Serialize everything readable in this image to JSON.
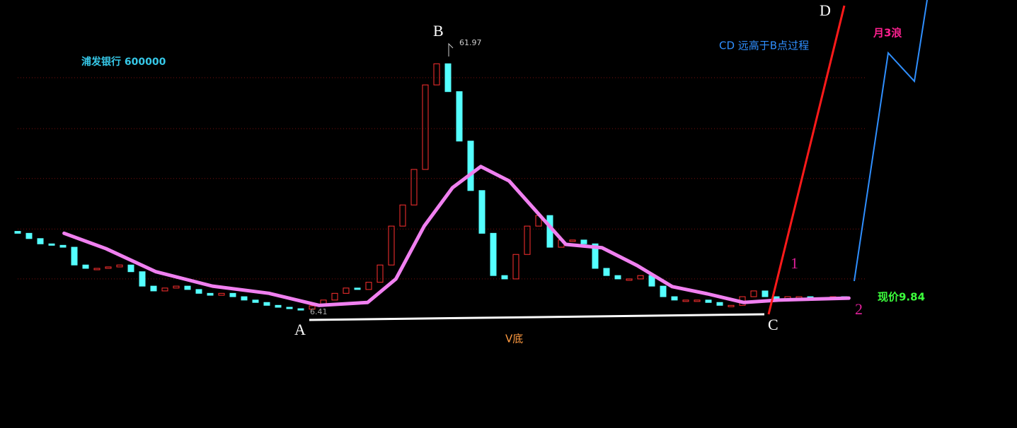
{
  "chart_data": {
    "type": "candlestick",
    "title": "浦发银行 600000",
    "open": [
      23.0,
      22.6,
      21.5,
      20.4,
      20.1,
      19.7,
      16.0,
      15.3,
      15.3,
      15.6,
      16.0,
      14.6,
      11.6,
      10.6,
      11.2,
      11.6,
      10.9,
      10.1,
      9.7,
      10.1,
      9.4,
      8.7,
      8.2,
      7.6,
      7.2,
      6.9,
      6.8,
      7.5,
      8.7,
      10.1,
      11.2,
      10.9,
      12.4,
      16.0,
      24.1,
      28.5,
      35.9,
      53.5,
      57.9,
      52.1,
      41.8,
      31.5,
      22.6,
      13.8,
      13.1,
      18.2,
      24.1,
      26.3,
      19.7,
      21.2,
      21.2,
      20.4,
      15.3,
      13.8,
      13.1,
      13.1,
      13.8,
      11.6,
      9.4,
      8.7,
      8.7,
      8.7,
      8.2,
      7.6,
      7.6,
      9.4,
      10.6,
      9.4,
      8.7,
      9.4,
      9.4,
      9.1,
      9.1,
      9.4
    ],
    "close": [
      22.6,
      21.5,
      20.4,
      20.1,
      19.7,
      16.0,
      15.3,
      15.3,
      15.6,
      16.0,
      14.6,
      11.6,
      10.6,
      11.2,
      11.6,
      10.9,
      10.1,
      9.7,
      10.1,
      9.4,
      8.7,
      8.2,
      7.6,
      7.2,
      6.9,
      6.8,
      7.5,
      8.7,
      10.1,
      11.2,
      10.9,
      12.4,
      16.0,
      24.1,
      28.5,
      35.9,
      53.5,
      57.9,
      52.1,
      41.8,
      31.5,
      22.6,
      13.8,
      13.1,
      18.2,
      24.1,
      26.3,
      19.7,
      21.2,
      21.2,
      20.4,
      15.3,
      13.8,
      13.1,
      13.1,
      13.8,
      11.6,
      9.4,
      8.7,
      8.7,
      8.7,
      8.2,
      7.6,
      7.6,
      9.4,
      10.6,
      9.4,
      8.7,
      9.4,
      9.4,
      9.1,
      9.1,
      9.4,
      9.3
    ],
    "up_color": "#ff3030",
    "down_color": "#54ffff",
    "moving_average": {
      "color": "#f080f0",
      "x": [
        4.1,
        7.8,
        12.2,
        17.2,
        22.2,
        26.6,
        30.9,
        33.4,
        35.9,
        38.4,
        40.9,
        43.4,
        45.9,
        48.4,
        51.6,
        54.7,
        57.8,
        60.9,
        64.1,
        67.2,
        73.4
      ],
      "values": [
        22.6,
        19.4,
        14.6,
        11.6,
        10.1,
        7.6,
        8.2,
        13.1,
        24.1,
        32.1,
        36.5,
        33.5,
        26.9,
        20.3,
        19.6,
        15.9,
        11.5,
        10.0,
        8.2,
        8.7,
        9.1
      ]
    },
    "ylim": [
      0,
      70
    ],
    "gridlines": [
      13.1,
      23.5,
      34,
      44.4,
      55
    ],
    "annotations": {
      "high_label": "61.97",
      "low_label": "6.41",
      "price_label": "现价9.84",
      "point_a": "A",
      "point_b": "B",
      "point_c": "C",
      "point_d": "D",
      "wave_1": "1",
      "wave_2": "2",
      "cd_note": "CD 远高于B点过程",
      "wave_note": "月3浪",
      "bottom_note": "V底"
    }
  }
}
